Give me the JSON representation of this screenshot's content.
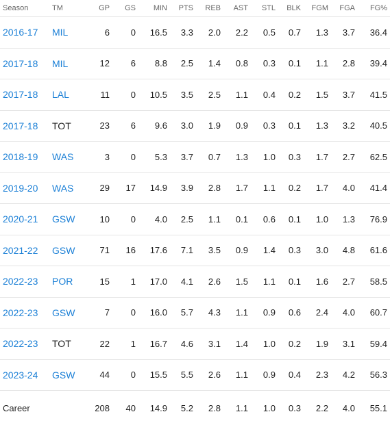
{
  "columns": [
    "Season",
    "TM",
    "GP",
    "GS",
    "MIN",
    "PTS",
    "REB",
    "AST",
    "STL",
    "BLK",
    "FGM",
    "FGA",
    "FG%"
  ],
  "rows": [
    {
      "season": "2016-17",
      "team": "MIL",
      "season_link": true,
      "team_link": true,
      "gp": "6",
      "gs": "0",
      "min": "16.5",
      "pts": "3.3",
      "reb": "2.0",
      "ast": "2.2",
      "stl": "0.5",
      "blk": "0.7",
      "fgm": "1.3",
      "fga": "3.7",
      "fgp": "36.4"
    },
    {
      "season": "2017-18",
      "team": "MIL",
      "season_link": true,
      "team_link": true,
      "gp": "12",
      "gs": "6",
      "min": "8.8",
      "pts": "2.5",
      "reb": "1.4",
      "ast": "0.8",
      "stl": "0.3",
      "blk": "0.1",
      "fgm": "1.1",
      "fga": "2.8",
      "fgp": "39.4"
    },
    {
      "season": "2017-18",
      "team": "LAL",
      "season_link": true,
      "team_link": true,
      "gp": "11",
      "gs": "0",
      "min": "10.5",
      "pts": "3.5",
      "reb": "2.5",
      "ast": "1.1",
      "stl": "0.4",
      "blk": "0.2",
      "fgm": "1.5",
      "fga": "3.7",
      "fgp": "41.5"
    },
    {
      "season": "2017-18",
      "team": "TOT",
      "season_link": true,
      "team_link": false,
      "gp": "23",
      "gs": "6",
      "min": "9.6",
      "pts": "3.0",
      "reb": "1.9",
      "ast": "0.9",
      "stl": "0.3",
      "blk": "0.1",
      "fgm": "1.3",
      "fga": "3.2",
      "fgp": "40.5"
    },
    {
      "season": "2018-19",
      "team": "WAS",
      "season_link": true,
      "team_link": true,
      "gp": "3",
      "gs": "0",
      "min": "5.3",
      "pts": "3.7",
      "reb": "0.7",
      "ast": "1.3",
      "stl": "1.0",
      "blk": "0.3",
      "fgm": "1.7",
      "fga": "2.7",
      "fgp": "62.5"
    },
    {
      "season": "2019-20",
      "team": "WAS",
      "season_link": true,
      "team_link": true,
      "gp": "29",
      "gs": "17",
      "min": "14.9",
      "pts": "3.9",
      "reb": "2.8",
      "ast": "1.7",
      "stl": "1.1",
      "blk": "0.2",
      "fgm": "1.7",
      "fga": "4.0",
      "fgp": "41.4"
    },
    {
      "season": "2020-21",
      "team": "GSW",
      "season_link": true,
      "team_link": true,
      "gp": "10",
      "gs": "0",
      "min": "4.0",
      "pts": "2.5",
      "reb": "1.1",
      "ast": "0.1",
      "stl": "0.6",
      "blk": "0.1",
      "fgm": "1.0",
      "fga": "1.3",
      "fgp": "76.9"
    },
    {
      "season": "2021-22",
      "team": "GSW",
      "season_link": true,
      "team_link": true,
      "gp": "71",
      "gs": "16",
      "min": "17.6",
      "pts": "7.1",
      "reb": "3.5",
      "ast": "0.9",
      "stl": "1.4",
      "blk": "0.3",
      "fgm": "3.0",
      "fga": "4.8",
      "fgp": "61.6"
    },
    {
      "season": "2022-23",
      "team": "POR",
      "season_link": true,
      "team_link": true,
      "gp": "15",
      "gs": "1",
      "min": "17.0",
      "pts": "4.1",
      "reb": "2.6",
      "ast": "1.5",
      "stl": "1.1",
      "blk": "0.1",
      "fgm": "1.6",
      "fga": "2.7",
      "fgp": "58.5"
    },
    {
      "season": "2022-23",
      "team": "GSW",
      "season_link": true,
      "team_link": true,
      "gp": "7",
      "gs": "0",
      "min": "16.0",
      "pts": "5.7",
      "reb": "4.3",
      "ast": "1.1",
      "stl": "0.9",
      "blk": "0.6",
      "fgm": "2.4",
      "fga": "4.0",
      "fgp": "60.7"
    },
    {
      "season": "2022-23",
      "team": "TOT",
      "season_link": true,
      "team_link": false,
      "gp": "22",
      "gs": "1",
      "min": "16.7",
      "pts": "4.6",
      "reb": "3.1",
      "ast": "1.4",
      "stl": "1.0",
      "blk": "0.2",
      "fgm": "1.9",
      "fga": "3.1",
      "fgp": "59.4"
    },
    {
      "season": "2023-24",
      "team": "GSW",
      "season_link": true,
      "team_link": true,
      "gp": "44",
      "gs": "0",
      "min": "15.5",
      "pts": "5.5",
      "reb": "2.6",
      "ast": "1.1",
      "stl": "0.9",
      "blk": "0.4",
      "fgm": "2.3",
      "fga": "4.2",
      "fgp": "56.3"
    }
  ],
  "career": {
    "label": "Career",
    "gp": "208",
    "gs": "40",
    "min": "14.9",
    "pts": "5.2",
    "reb": "2.8",
    "ast": "1.1",
    "stl": "1.0",
    "blk": "0.3",
    "fgm": "2.2",
    "fga": "4.0",
    "fgp": "55.1"
  },
  "colors": {
    "link": "#1a7fd6",
    "header_text": "#666666",
    "divider": "#e5e5e5"
  }
}
